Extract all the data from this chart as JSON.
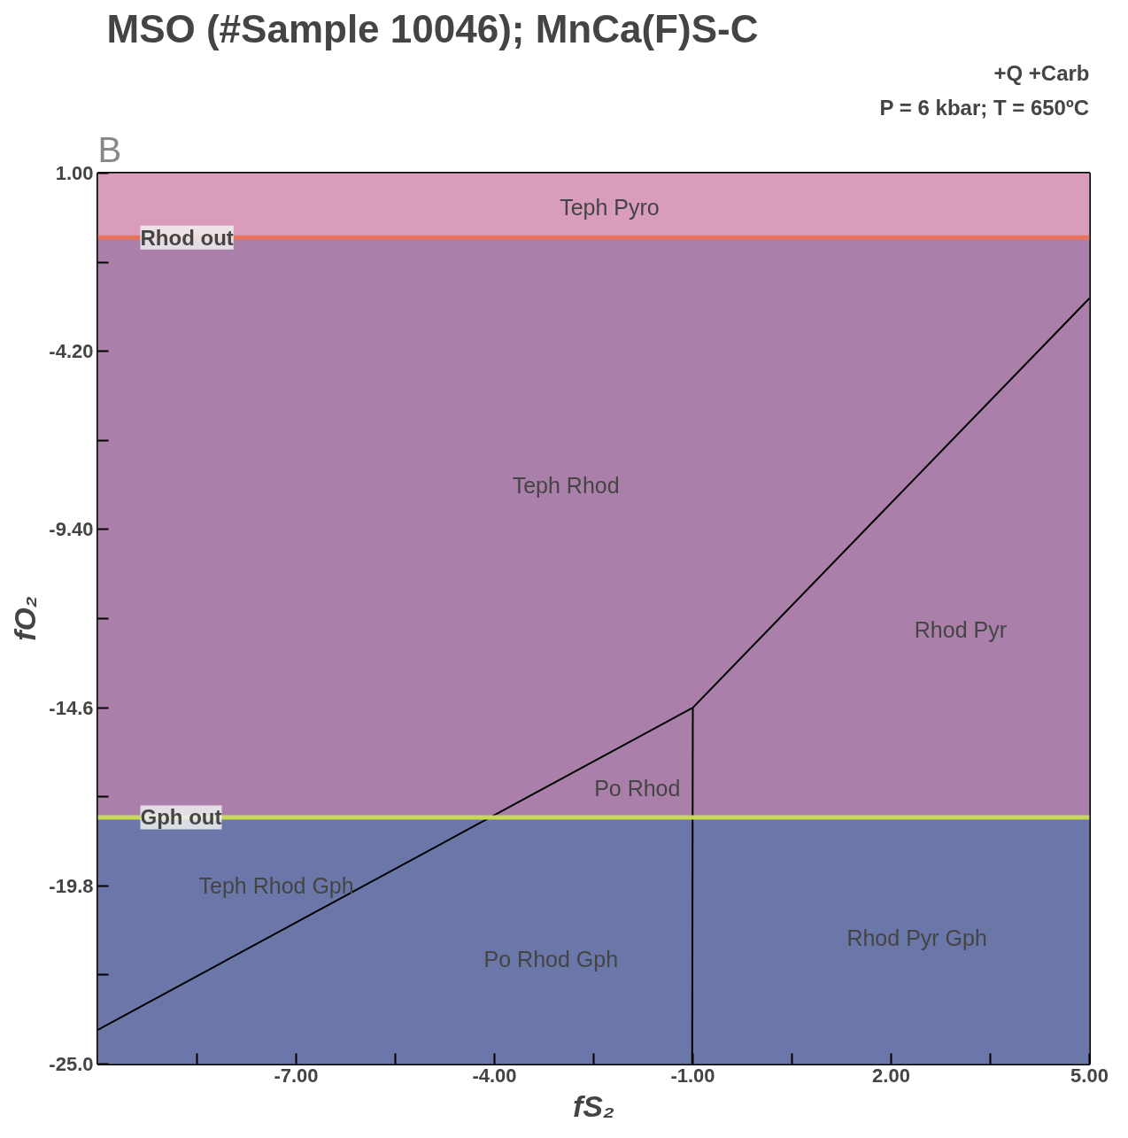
{
  "chart_data": {
    "type": "line",
    "title": "MSO (#Sample 10046); MnCa(F)S-C",
    "xlabel": "fS₂",
    "ylabel": "fO₂",
    "xlim": [
      -10,
      5
    ],
    "ylim": [
      -25,
      1
    ],
    "xticks": [
      {
        "value": -8.5,
        "label": null
      },
      {
        "value": -7,
        "label": "-7.00"
      },
      {
        "value": -5.5,
        "label": null
      },
      {
        "value": -4,
        "label": "-4.00"
      },
      {
        "value": -2.5,
        "label": null
      },
      {
        "value": -1,
        "label": "-1.00"
      },
      {
        "value": 0.5,
        "label": null
      },
      {
        "value": 2,
        "label": "2.00"
      },
      {
        "value": 3.5,
        "label": null
      },
      {
        "value": 5,
        "label": "5.00"
      }
    ],
    "yticks": [
      {
        "value": -25,
        "label": "-25.0"
      },
      {
        "value": -22.4,
        "label": null
      },
      {
        "value": -19.8,
        "label": "-19.8"
      },
      {
        "value": -17.2,
        "label": null
      },
      {
        "value": -14.6,
        "label": "-14.6"
      },
      {
        "value": -12,
        "label": null
      },
      {
        "value": -9.4,
        "label": "-9.40"
      },
      {
        "value": -6.8,
        "label": null
      },
      {
        "value": -4.2,
        "label": "-4.20"
      },
      {
        "value": -1.6,
        "label": null
      },
      {
        "value": 1,
        "label": "1.00"
      }
    ],
    "grid": false,
    "bands": [
      {
        "axis": "y",
        "from": -0.88,
        "to": 1,
        "color": "#d99dbb"
      },
      {
        "axis": "y",
        "from": -17.8,
        "to": -0.88,
        "color": "#aa80aa"
      },
      {
        "axis": "y",
        "from": -25,
        "to": -17.8,
        "color": "#6b77a8"
      }
    ],
    "ref_lines": [
      {
        "axis": "y",
        "value": -0.88,
        "label": "Rhod out",
        "color": "#e8735a"
      },
      {
        "axis": "y",
        "value": -17.8,
        "label": "Gph out",
        "color": "#c8d85a"
      }
    ],
    "series": [
      {
        "color": "#000000",
        "x": [
          -10,
          -1,
          5
        ],
        "values": [
          -24.0,
          -14.6,
          -2.65
        ]
      },
      {
        "color": "#000000",
        "x": [
          -1,
          -1.01
        ],
        "values": [
          -14.6,
          -25
        ]
      }
    ],
    "annotations": [
      "B",
      "+Q +Carb",
      "P = 6 kbar; T = 650ºC",
      "Teph Pyro",
      "Teph Rhod",
      "Rhod Pyr",
      "Po Rhod",
      "Teph Rhod Gph",
      "Po Rhod Gph",
      "Rhod Pyr Gph"
    ]
  }
}
